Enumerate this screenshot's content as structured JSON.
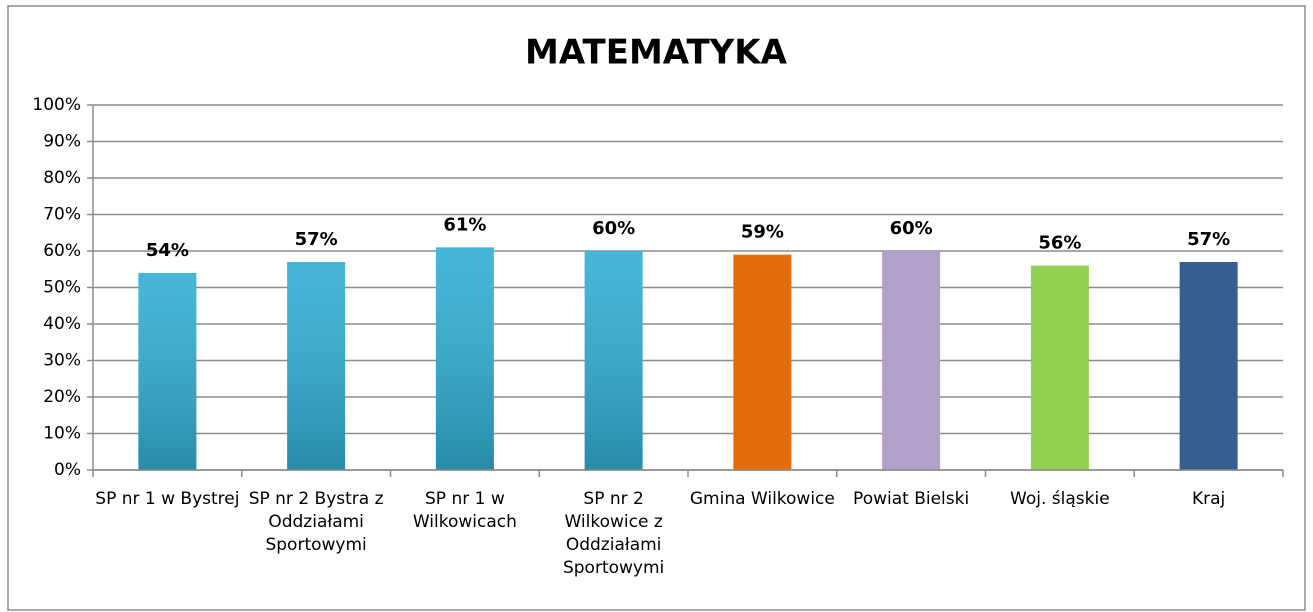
{
  "chart_data": {
    "type": "bar",
    "title": "MATEMATYKA",
    "categories": [
      "SP nr 1 w Bystrej",
      "SP nr 2 Bystra z Oddziałami Sportowymi",
      "SP nr 1 w Wilkowicach",
      "SP nr 2 Wilkowice z Oddziałami Sportowymi",
      "Gmina Wilkowice",
      "Powiat Bielski",
      "Woj. śląskie",
      "Kraj"
    ],
    "values": [
      54,
      57,
      61,
      60,
      59,
      60,
      56,
      57
    ],
    "value_labels": [
      "54%",
      "57%",
      "61%",
      "60%",
      "59%",
      "60%",
      "56%",
      "57%"
    ],
    "colors": [
      "#31aed3",
      "#31aed3",
      "#31aed3",
      "#31aed3",
      "#e46c0a",
      "#b1a0c7",
      "#92d050",
      "#365f91"
    ],
    "ylim": [
      0,
      100
    ],
    "yticks": [
      {
        "value": 0,
        "label": "0%"
      },
      {
        "value": 10,
        "label": "10%"
      },
      {
        "value": 20,
        "label": "20%"
      },
      {
        "value": 30,
        "label": "30%"
      },
      {
        "value": 40,
        "label": "40%"
      },
      {
        "value": 50,
        "label": "50%"
      },
      {
        "value": 60,
        "label": "60%"
      },
      {
        "value": 70,
        "label": "70%"
      },
      {
        "value": 80,
        "label": "80%"
      },
      {
        "value": 90,
        "label": "90%"
      },
      {
        "value": 100,
        "label": "100%"
      }
    ],
    "grid": true
  }
}
